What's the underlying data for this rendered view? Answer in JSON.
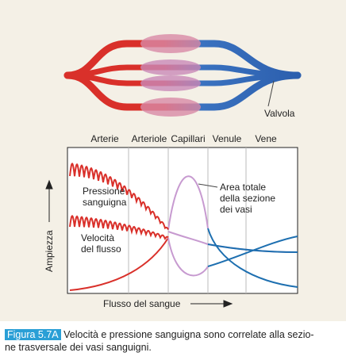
{
  "labels": {
    "valve": "Valvola",
    "columns": [
      "Arterie",
      "Arteriole",
      "Capillari",
      "Venule",
      "Vene"
    ],
    "pressure": [
      "Pressione",
      "sanguigna"
    ],
    "velocity": [
      "Velocità",
      "del flusso"
    ],
    "area": [
      "Area totale",
      "della sezione",
      "dei vasi"
    ],
    "y_axis": "Ampiezza",
    "x_axis": "Flusso del sangue"
  },
  "caption": {
    "label": "Figura 5.7A",
    "lines": [
      "Velocità e pressione sanguigna sono correlate alla sezio-",
      "ne trasversale dei vasi sanguigni."
    ]
  }
}
